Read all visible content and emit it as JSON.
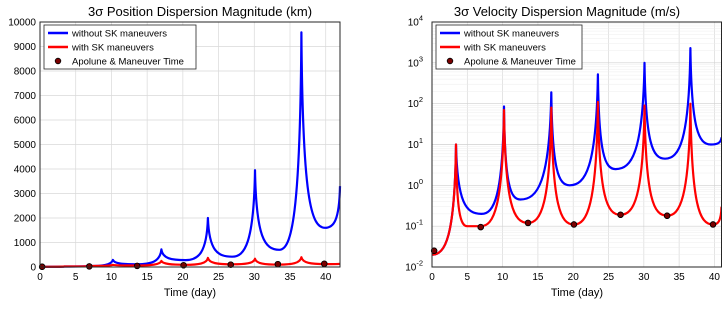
{
  "chart_data": [
    {
      "type": "line",
      "title": "3σ Position Dispersion Magnitude (km)",
      "xlabel": "Time (day)",
      "ylabel": "",
      "xlim": [
        0,
        42
      ],
      "ylim": [
        0,
        10000
      ],
      "x_ticks": [
        "0",
        "5",
        "10",
        "15",
        "20",
        "25",
        "30",
        "35",
        "40"
      ],
      "y_ticks": [
        "0",
        "1000",
        "2000",
        "3000",
        "4000",
        "5000",
        "6000",
        "7000",
        "8000",
        "9000",
        "10000"
      ],
      "grid": true,
      "legend_position": "top-left",
      "series": [
        {
          "name": "without SK maneuvers",
          "color": "#0000ff",
          "x": [
            0,
            3.4,
            6.8,
            10.2,
            13.6,
            17.0,
            20.4,
            23.5,
            26.9,
            30.1,
            33.5,
            36.6,
            39.9,
            42
          ],
          "y": [
            10,
            20,
            35,
            290,
            110,
            720,
            280,
            2000,
            420,
            3950,
            700,
            9580,
            1600,
            3300
          ]
        },
        {
          "name": "with SK maneuvers",
          "color": "#ff0000",
          "x": [
            0,
            3.4,
            6.8,
            10.2,
            13.6,
            17.0,
            20.4,
            23.5,
            26.9,
            30.1,
            33.5,
            36.6,
            39.9,
            42
          ],
          "y": [
            10,
            20,
            40,
            90,
            60,
            250,
            90,
            370,
            110,
            340,
            100,
            400,
            120,
            130
          ]
        },
        {
          "name": "Apolune & Maneuver Time",
          "color": "#7a0000",
          "marker": "o",
          "x": [
            0.3,
            6.9,
            13.6,
            20.1,
            26.7,
            33.3,
            39.8
          ],
          "y": [
            10,
            25,
            45,
            70,
            95,
            115,
            130
          ]
        }
      ]
    },
    {
      "type": "line",
      "title": "3σ Velocity Dispersion Magnitude (m/s)",
      "xlabel": "Time (day)",
      "ylabel": "",
      "yscale": "log",
      "xlim": [
        0,
        41
      ],
      "ylim": [
        0.01,
        10000
      ],
      "x_ticks": [
        "0",
        "5",
        "10",
        "15",
        "20",
        "25",
        "30",
        "35",
        "40"
      ],
      "y_ticks": [
        "10-2",
        "10-1",
        "100",
        "101",
        "102",
        "103",
        "104"
      ],
      "grid": true,
      "legend_position": "top-left",
      "series": [
        {
          "name": "without SK maneuvers",
          "color": "#0000ff",
          "x": [
            0,
            3.4,
            7.0,
            10.2,
            12.5,
            16.9,
            19.5,
            23.5,
            26.0,
            30.1,
            33.0,
            36.6,
            39.5,
            41
          ],
          "y": [
            0.02,
            10,
            0.2,
            85,
            0.45,
            190,
            1.0,
            520,
            2.5,
            1000,
            4.5,
            2300,
            10,
            15
          ]
        },
        {
          "name": "with SK maneuvers",
          "color": "#ff0000",
          "x": [
            0,
            3.4,
            5.0,
            6.9,
            10.2,
            13.6,
            16.9,
            20.1,
            23.5,
            26.7,
            30.1,
            33.3,
            36.6,
            39.8,
            41
          ],
          "y": [
            0.02,
            10,
            0.1,
            0.1,
            70,
            0.12,
            80,
            0.11,
            110,
            0.19,
            90,
            0.18,
            100,
            0.11,
            0.3
          ]
        },
        {
          "name": "Apolune & Maneuver Time",
          "color": "#7a0000",
          "marker": "o",
          "x": [
            0.3,
            6.9,
            13.6,
            20.1,
            26.7,
            33.3,
            39.8
          ],
          "y": [
            0.025,
            0.095,
            0.12,
            0.11,
            0.19,
            0.18,
            0.11
          ]
        }
      ]
    }
  ]
}
